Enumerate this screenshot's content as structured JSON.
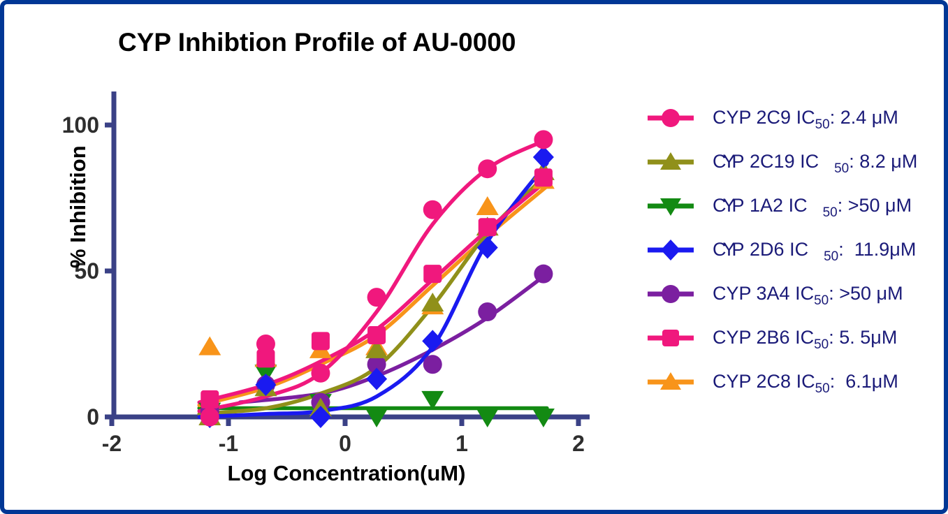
{
  "title": "CYP Inhibtion Profile of AU-0000",
  "colors": {
    "border": "#003795",
    "axis": "#3A4186",
    "tick_text": "#2E2E2E",
    "title_text": "#000000",
    "legend_text": "#1A1A78"
  },
  "chart_data": {
    "type": "scatter",
    "title": "CYP Inhibtion Profile of AU-0000",
    "xlabel": "Log Concentration(uM)",
    "ylabel": "% Inhibition",
    "xlim": [
      -2,
      2
    ],
    "ylim": [
      0,
      100
    ],
    "xticks": [
      "-2",
      "-1",
      "0",
      "1",
      "2"
    ],
    "yticks": [
      "0",
      "50",
      "100"
    ],
    "grid": false,
    "legend_position": "right",
    "legend_static": {
      "ic": "IC",
      "sub": "50",
      "colon": ":"
    },
    "x": [
      -1.16,
      -0.68,
      -0.21,
      0.27,
      0.75,
      1.22,
      1.7
    ],
    "series": [
      {
        "name": "CYP 2C9",
        "marker": "circle",
        "color": "#F0187D",
        "ic50_value": "2.4 μM",
        "cramped": false,
        "gap": false,
        "values": [
          0,
          25,
          15,
          41,
          71,
          85,
          95
        ],
        "curve": [
          [
            -1.25,
            2
          ],
          [
            -0.68,
            7
          ],
          [
            -0.21,
            15
          ],
          [
            0.27,
            36
          ],
          [
            0.75,
            66
          ],
          [
            1.22,
            85
          ],
          [
            1.73,
            95
          ]
        ]
      },
      {
        "name": "CYP 2C19",
        "marker": "triangle-up",
        "color": "#90901A",
        "ic50_value": "8.2 μM",
        "cramped": true,
        "gap": true,
        "values": [
          0,
          10,
          3,
          23,
          39,
          65,
          84
        ],
        "curve": [
          [
            -1.25,
            1
          ],
          [
            -0.68,
            3
          ],
          [
            -0.21,
            8
          ],
          [
            0.27,
            17
          ],
          [
            0.75,
            38
          ],
          [
            1.22,
            63
          ],
          [
            1.73,
            83
          ]
        ]
      },
      {
        "name": "CYP 1A2",
        "marker": "triangle-down",
        "color": "#138A13",
        "ic50_value": ">50 μM",
        "cramped": true,
        "gap": true,
        "values": [
          2,
          15,
          5,
          0,
          6,
          0,
          0
        ],
        "curve": [
          [
            -1.25,
            3
          ],
          [
            -0.5,
            3
          ],
          [
            0.5,
            3
          ],
          [
            1.73,
            3
          ]
        ]
      },
      {
        "name": "CYP 2D6",
        "marker": "diamond",
        "color": "#1A1AF0",
        "ic50_value": " 11.9μM",
        "cramped": true,
        "gap": true,
        "values": [
          0,
          11,
          0,
          13,
          26,
          58,
          89
        ],
        "curve": [
          [
            -1.25,
            0
          ],
          [
            -0.68,
            1
          ],
          [
            -0.21,
            2
          ],
          [
            0.27,
            7
          ],
          [
            0.75,
            24
          ],
          [
            1.22,
            60
          ],
          [
            1.73,
            87
          ]
        ]
      },
      {
        "name": "CYP 3A4",
        "marker": "circle",
        "color": "#7B1FA0",
        "ic50_value": ">50 μM",
        "cramped": false,
        "gap": false,
        "values": [
          2,
          11,
          5,
          18,
          18,
          36,
          49
        ],
        "curve": [
          [
            -0.9,
            5
          ],
          [
            -0.21,
            8
          ],
          [
            0.27,
            14
          ],
          [
            0.75,
            23
          ],
          [
            1.22,
            34
          ],
          [
            1.73,
            49
          ]
        ]
      },
      {
        "name": "CYP 2B6",
        "marker": "square",
        "color": "#F0187D",
        "ic50_value": "5. 5μM",
        "cramped": false,
        "gap": false,
        "values": [
          6,
          20,
          26,
          28,
          49,
          65,
          82
        ],
        "curve": [
          [
            -1.25,
            5
          ],
          [
            -0.68,
            11
          ],
          [
            -0.21,
            19
          ],
          [
            0.27,
            30
          ],
          [
            0.75,
            47
          ],
          [
            1.22,
            64
          ],
          [
            1.73,
            81
          ]
        ]
      },
      {
        "name": "CYP 2C8",
        "marker": "triangle-up",
        "color": "#F8941A",
        "ic50_value": " 6.1μM",
        "cramped": false,
        "gap": false,
        "values": [
          24,
          20,
          23,
          24,
          38,
          72,
          81
        ],
        "curve": [
          [
            -1.25,
            4
          ],
          [
            -0.68,
            10
          ],
          [
            -0.21,
            18
          ],
          [
            0.27,
            28
          ],
          [
            0.75,
            45
          ],
          [
            1.22,
            62
          ],
          [
            1.73,
            79
          ]
        ]
      }
    ]
  }
}
